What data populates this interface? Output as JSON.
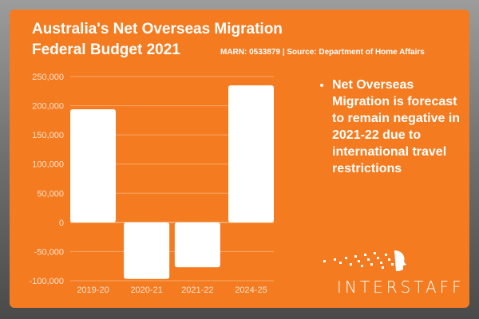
{
  "title_line1": "Australia's Net Overseas Migration",
  "title_line2": "Federal Budget 2021",
  "source": "MARN: 0533879 | Source: Department of Home Affairs",
  "bullet": "Net Overseas Migration is forecast to remain negative in 2021-22 due to international travel restrictions",
  "logo": "INTERSTAFF",
  "colors": {
    "background": "#f47b20",
    "bars": "#ffffff",
    "text": "#ffffff"
  },
  "chart_data": {
    "type": "bar",
    "categories": [
      "2019-20",
      "2020-21",
      "2021-22",
      "2024-25"
    ],
    "values": [
      194000,
      -97000,
      -77000,
      235000
    ],
    "ylim": [
      -100000,
      250000
    ],
    "yticks": [
      "250,000",
      "200,000",
      "150,000",
      "100,000",
      "50,000",
      "0",
      "-50,000",
      "-100,000"
    ],
    "ytick_values": [
      250000,
      200000,
      150000,
      100000,
      50000,
      0,
      -50000,
      -100000
    ],
    "grid": true,
    "legend": "none"
  }
}
